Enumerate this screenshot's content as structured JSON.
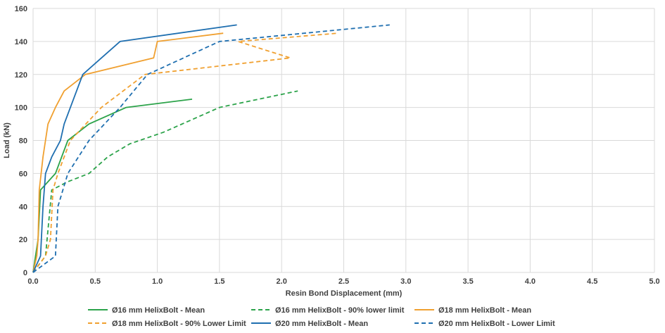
{
  "chart_data": {
    "type": "line",
    "xlabel": "Resin Bond Displacement (mm)",
    "ylabel": "Load (kN)",
    "xlim": [
      0,
      5
    ],
    "ylim": [
      0,
      160
    ],
    "xticks": [
      "0.0",
      "0.5",
      "1.0",
      "1.5",
      "2.0",
      "2.5",
      "3.0",
      "3.5",
      "4.0",
      "4.5",
      "5.0"
    ],
    "yticks": [
      "0",
      "20",
      "40",
      "60",
      "80",
      "100",
      "120",
      "140",
      "160"
    ],
    "grid": true,
    "legend_position": "bottom",
    "series": [
      {
        "name": "Ø16 mm HelixBolt - Mean",
        "color": "#2ca34a",
        "dash": "solid",
        "x": [
          0,
          0.02,
          0.04,
          0.06,
          0.12,
          0.18,
          0.28,
          0.45,
          0.75,
          1.28
        ],
        "y": [
          0,
          10,
          20,
          50,
          55,
          60,
          80,
          90,
          100,
          105
        ]
      },
      {
        "name": "Ø16 mm HelixBolt - 90% lower limit",
        "color": "#2ca34a",
        "dash": "dashed",
        "x": [
          0,
          0.05,
          0.1,
          0.15,
          0.28,
          0.45,
          0.6,
          0.78,
          1.05,
          1.5,
          2.13
        ],
        "y": [
          0,
          5,
          10,
          50,
          55,
          60,
          70,
          78,
          85,
          100,
          110
        ]
      },
      {
        "name": "Ø18 mm HelixBolt - Mean",
        "color": "#f0a030",
        "dash": "solid",
        "x": [
          0,
          0.03,
          0.04,
          0.05,
          0.08,
          0.12,
          0.18,
          0.25,
          0.42,
          0.97,
          1.0,
          1.53
        ],
        "y": [
          0,
          10,
          20,
          50,
          70,
          90,
          100,
          110,
          120,
          130,
          140,
          145
        ]
      },
      {
        "name": "Ø18 mm HelixBolt - 90% Lower Limit",
        "color": "#f0a030",
        "dash": "dashed",
        "x": [
          0,
          0.1,
          0.14,
          0.16,
          0.2,
          0.3,
          0.55,
          0.9,
          2.07,
          1.65,
          2.45
        ],
        "y": [
          0,
          10,
          20,
          50,
          60,
          80,
          100,
          120,
          130,
          140,
          145
        ]
      },
      {
        "name": "Ø20 mm HelixBolt - Mean",
        "color": "#1f6fb0",
        "dash": "solid",
        "x": [
          0,
          0.06,
          0.08,
          0.1,
          0.15,
          0.22,
          0.25,
          0.4,
          0.55,
          0.7,
          1.64
        ],
        "y": [
          0,
          10,
          40,
          60,
          70,
          80,
          90,
          120,
          130,
          140,
          150
        ]
      },
      {
        "name": "Ø20 mm HelixBolt - Lower Limit",
        "color": "#1f6fb0",
        "dash": "dashed",
        "x": [
          0,
          0.18,
          0.2,
          0.28,
          0.45,
          0.7,
          0.92,
          1.5,
          2.87
        ],
        "y": [
          0,
          10,
          40,
          60,
          80,
          100,
          120,
          140,
          150
        ]
      }
    ]
  }
}
